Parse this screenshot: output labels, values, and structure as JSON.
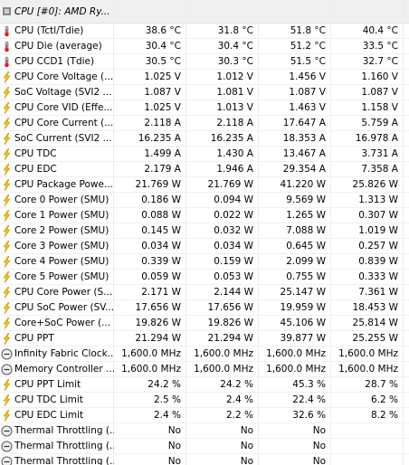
{
  "header": {
    "title": "CPU [#0]: AMD Ry..."
  },
  "rows": [
    {
      "label": "CPU (Tctl/Tdie)",
      "values": [
        "38.6 °C",
        "31.8 °C",
        "51.8 °C",
        "40.4 °C"
      ]
    },
    {
      "label": "CPU Die (average)",
      "values": [
        "30.4 °C",
        "30.4 °C",
        "51.2 °C",
        "33.5 °C"
      ]
    },
    {
      "label": "CPU CCD1 (Tdie)",
      "values": [
        "30.5 °C",
        "30.3 °C",
        "51.5 °C",
        "32.7 °C"
      ]
    },
    {
      "label": "CPU Core Voltage (...",
      "values": [
        "1.025 V",
        "1.012 V",
        "1.456 V",
        "1.160 V"
      ]
    },
    {
      "label": "SoC Voltage (SVI2 ...",
      "values": [
        "1.087 V",
        "1.081 V",
        "1.087 V",
        "1.087 V"
      ]
    },
    {
      "label": "CPU Core VID (Effe...",
      "values": [
        "1.025 V",
        "1.013 V",
        "1.463 V",
        "1.158 V"
      ]
    },
    {
      "label": "CPU Core Current (...",
      "values": [
        "2.118 A",
        "2.118 A",
        "17.647 A",
        "5.759 A"
      ]
    },
    {
      "label": "SoC Current (SVI2 ...",
      "values": [
        "16.235 A",
        "16.235 A",
        "18.353 A",
        "16.978 A"
      ]
    },
    {
      "label": "CPU TDC",
      "values": [
        "1.499 A",
        "1.430 A",
        "13.467 A",
        "3.731 A"
      ]
    },
    {
      "label": "CPU EDC",
      "values": [
        "2.179 A",
        "1.946 A",
        "29.354 A",
        "7.358 A"
      ]
    },
    {
      "label": "CPU Package Powe...",
      "values": [
        "21.769 W",
        "21.769 W",
        "41.220 W",
        "25.826 W"
      ]
    },
    {
      "label": "Core 0 Power (SMU)",
      "values": [
        "0.186 W",
        "0.094 W",
        "9.569 W",
        "1.313 W"
      ]
    },
    {
      "label": "Core 1 Power (SMU)",
      "values": [
        "0.088 W",
        "0.022 W",
        "1.265 W",
        "0.307 W"
      ]
    },
    {
      "label": "Core 2 Power (SMU)",
      "values": [
        "0.145 W",
        "0.032 W",
        "7.088 W",
        "1.019 W"
      ]
    },
    {
      "label": "Core 3 Power (SMU)",
      "values": [
        "0.034 W",
        "0.034 W",
        "0.645 W",
        "0.257 W"
      ]
    },
    {
      "label": "Core 4 Power (SMU)",
      "values": [
        "0.339 W",
        "0.159 W",
        "2.099 W",
        "0.839 W"
      ]
    },
    {
      "label": "Core 5 Power (SMU)",
      "values": [
        "0.059 W",
        "0.053 W",
        "0.755 W",
        "0.333 W"
      ]
    },
    {
      "label": "CPU Core Power (S...",
      "values": [
        "2.171 W",
        "2.144 W",
        "25.147 W",
        "7.361 W"
      ]
    },
    {
      "label": "CPU SoC Power (SV...",
      "values": [
        "17.656 W",
        "17.656 W",
        "19.959 W",
        "18.453 W"
      ]
    },
    {
      "label": "Core+SoC Power (...",
      "values": [
        "19.826 W",
        "19.826 W",
        "45.106 W",
        "25.814 W"
      ]
    },
    {
      "label": "CPU PPT",
      "values": [
        "21.294 W",
        "21.294 W",
        "39.877 W",
        "25.255 W"
      ]
    },
    {
      "label": "Infinity Fabric Clock...",
      "values": [
        "1,600.0 MHz",
        "1,600.0 MHz",
        "1,600.0 MHz",
        "1,600.0 MHz"
      ]
    },
    {
      "label": "Memory Controller ...",
      "values": [
        "1,600.0 MHz",
        "1,600.0 MHz",
        "1,600.0 MHz",
        "1,600.0 MHz"
      ]
    },
    {
      "label": "CPU PPT Limit",
      "values": [
        "24.2 %",
        "24.2 %",
        "45.3 %",
        "28.7 %"
      ]
    },
    {
      "label": "CPU TDC Limit",
      "values": [
        "2.5 %",
        "2.4 %",
        "22.4 %",
        "6.2 %"
      ]
    },
    {
      "label": "CPU EDC Limit",
      "values": [
        "2.4 %",
        "2.2 %",
        "32.6 %",
        "8.2 %"
      ]
    },
    {
      "label": "Thermal Throttling (...",
      "values": [
        "No",
        "No",
        "No"
      ]
    },
    {
      "label": "Thermal Throttling (...",
      "values": [
        "No",
        "No",
        "No"
      ]
    },
    {
      "label": "Thermal Throttling (...",
      "values": [
        "No",
        "No",
        "No"
      ]
    }
  ]
}
